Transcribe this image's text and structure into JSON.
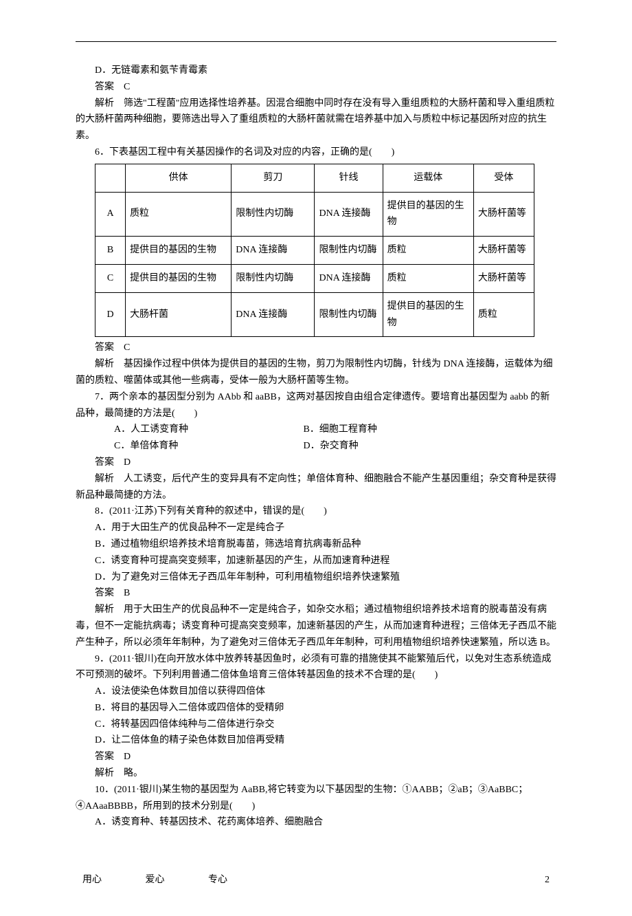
{
  "q5_partD": "D．无链霉素和氨苄青霉素",
  "q5_ans_label": "答案　C",
  "q5_exp": "解析　筛选\"工程菌\"应用选择性培养基。因混合细胞中同时存在没有导入重组质粒的大肠杆菌和导入重组质粒的大肠杆菌两种细胞，要筛选出导入了重组质粒的大肠杆菌就需在培养基中加入与质粒中标记基因所对应的抗生素。",
  "q6_stem": "6．下表基因工程中有关基因操作的名词及对应的内容，正确的是(　　)",
  "q6_table": {
    "columns": [
      "",
      "供体",
      "剪刀",
      "针线",
      "运载体",
      "受体"
    ],
    "rows": [
      [
        "A",
        "质粒",
        "限制性内切酶",
        "DNA 连接酶",
        "提供目的基因的生物",
        "大肠杆菌等"
      ],
      [
        "B",
        "提供目的基因的生物",
        "DNA 连接酶",
        "限制性内切酶",
        "质粒",
        "大肠杆菌等"
      ],
      [
        "C",
        "提供目的基因的生物",
        "限制性内切酶",
        "DNA 连接酶",
        "质粒",
        "大肠杆菌等"
      ],
      [
        "D",
        "大肠杆菌",
        "DNA 连接酶",
        "限制性内切酶",
        "提供目的基因的生物",
        "质粒"
      ]
    ],
    "col_widths": [
      "40px",
      "140px",
      "110px",
      "90px",
      "120px",
      "80px"
    ]
  },
  "q6_ans_label": "答案　C",
  "q6_exp": "解析　基因操作过程中供体为提供目的基因的生物，剪刀为限制性内切酶，针线为 DNA 连接酶，运载体为细菌的质粒、噬菌体或其他一些病毒，受体一般为大肠杆菌等生物。",
  "q7_stem": "7．两个亲本的基因型分别为 AAbb 和 aaBB，这两对基因按自由组合定律遗传。要培育出基因型为 aabb 的新品种，最简捷的方法是(　　)",
  "q7_A": "A．人工诱变育种",
  "q7_B": "B．细胞工程育种",
  "q7_C": "C．单倍体育种",
  "q7_D": "D．杂交育种",
  "q7_ans_label": "答案　D",
  "q7_exp": "解析　人工诱变，后代产生的变异具有不定向性；单倍体育种、细胞融合不能产生基因重组；杂交育种是获得新品种最简捷的方法。",
  "q8_stem": "8．(2011·江苏)下列有关育种的叙述中，错误的是(　　)",
  "q8_A": "A．用于大田生产的优良品种不一定是纯合子",
  "q8_B": "B．通过植物组织培养技术培育脱毒苗，筛选培育抗病毒新品种",
  "q8_C": "C．诱变育种可提高突变频率，加速新基因的产生，从而加速育种进程",
  "q8_D": "D．为了避免对三倍体无子西瓜年年制种，可利用植物组织培养快速繁殖",
  "q8_ans_label": "答案　B",
  "q8_exp": "解析　用于大田生产的优良品种不一定是纯合子，如杂交水稻；通过植物组织培养技术培育的脱毒苗没有病毒，但不一定能抗病毒；诱变育种可提高突变频率，加速新基因的产生，从而加速育种进程；三倍体无子西瓜不能产生种子，所以必须年年制种，为了避免对三倍体无子西瓜年年制种，可利用植物组织培养快速繁殖，所以选 B。",
  "q9_stem": "9．(2011·银川)在向开放水体中放养转基因鱼时，必须有可靠的措施使其不能繁殖后代，以免对生态系统造成不可预测的破坏。下列利用普通二倍体鱼培育三倍体转基因鱼的技术不合理的是(　　)",
  "q9_A": "A．设法使染色体数目加倍以获得四倍体",
  "q9_B": "B．将目的基因导入二倍体或四倍体的受精卵",
  "q9_C": "C．将转基因四倍体纯种与二倍体进行杂交",
  "q9_D": "D．让二倍体鱼的精子染色体数目加倍再受精",
  "q9_ans_label": "答案　D",
  "q9_exp": "解析　略。",
  "q10_stem": "10．(2011·银川)某生物的基因型为 AaBB,将它转变为以下基因型的生物：①AABB；②aB；③AaBBC；④AAaaBBBB，所用到的技术分别是(　　)",
  "q10_A": "A．诱变育种、转基因技术、花药离体培养、细胞融合",
  "footer_motto_1": "用心",
  "footer_motto_2": "爱心",
  "footer_motto_3": "专心",
  "footer_page": "2"
}
